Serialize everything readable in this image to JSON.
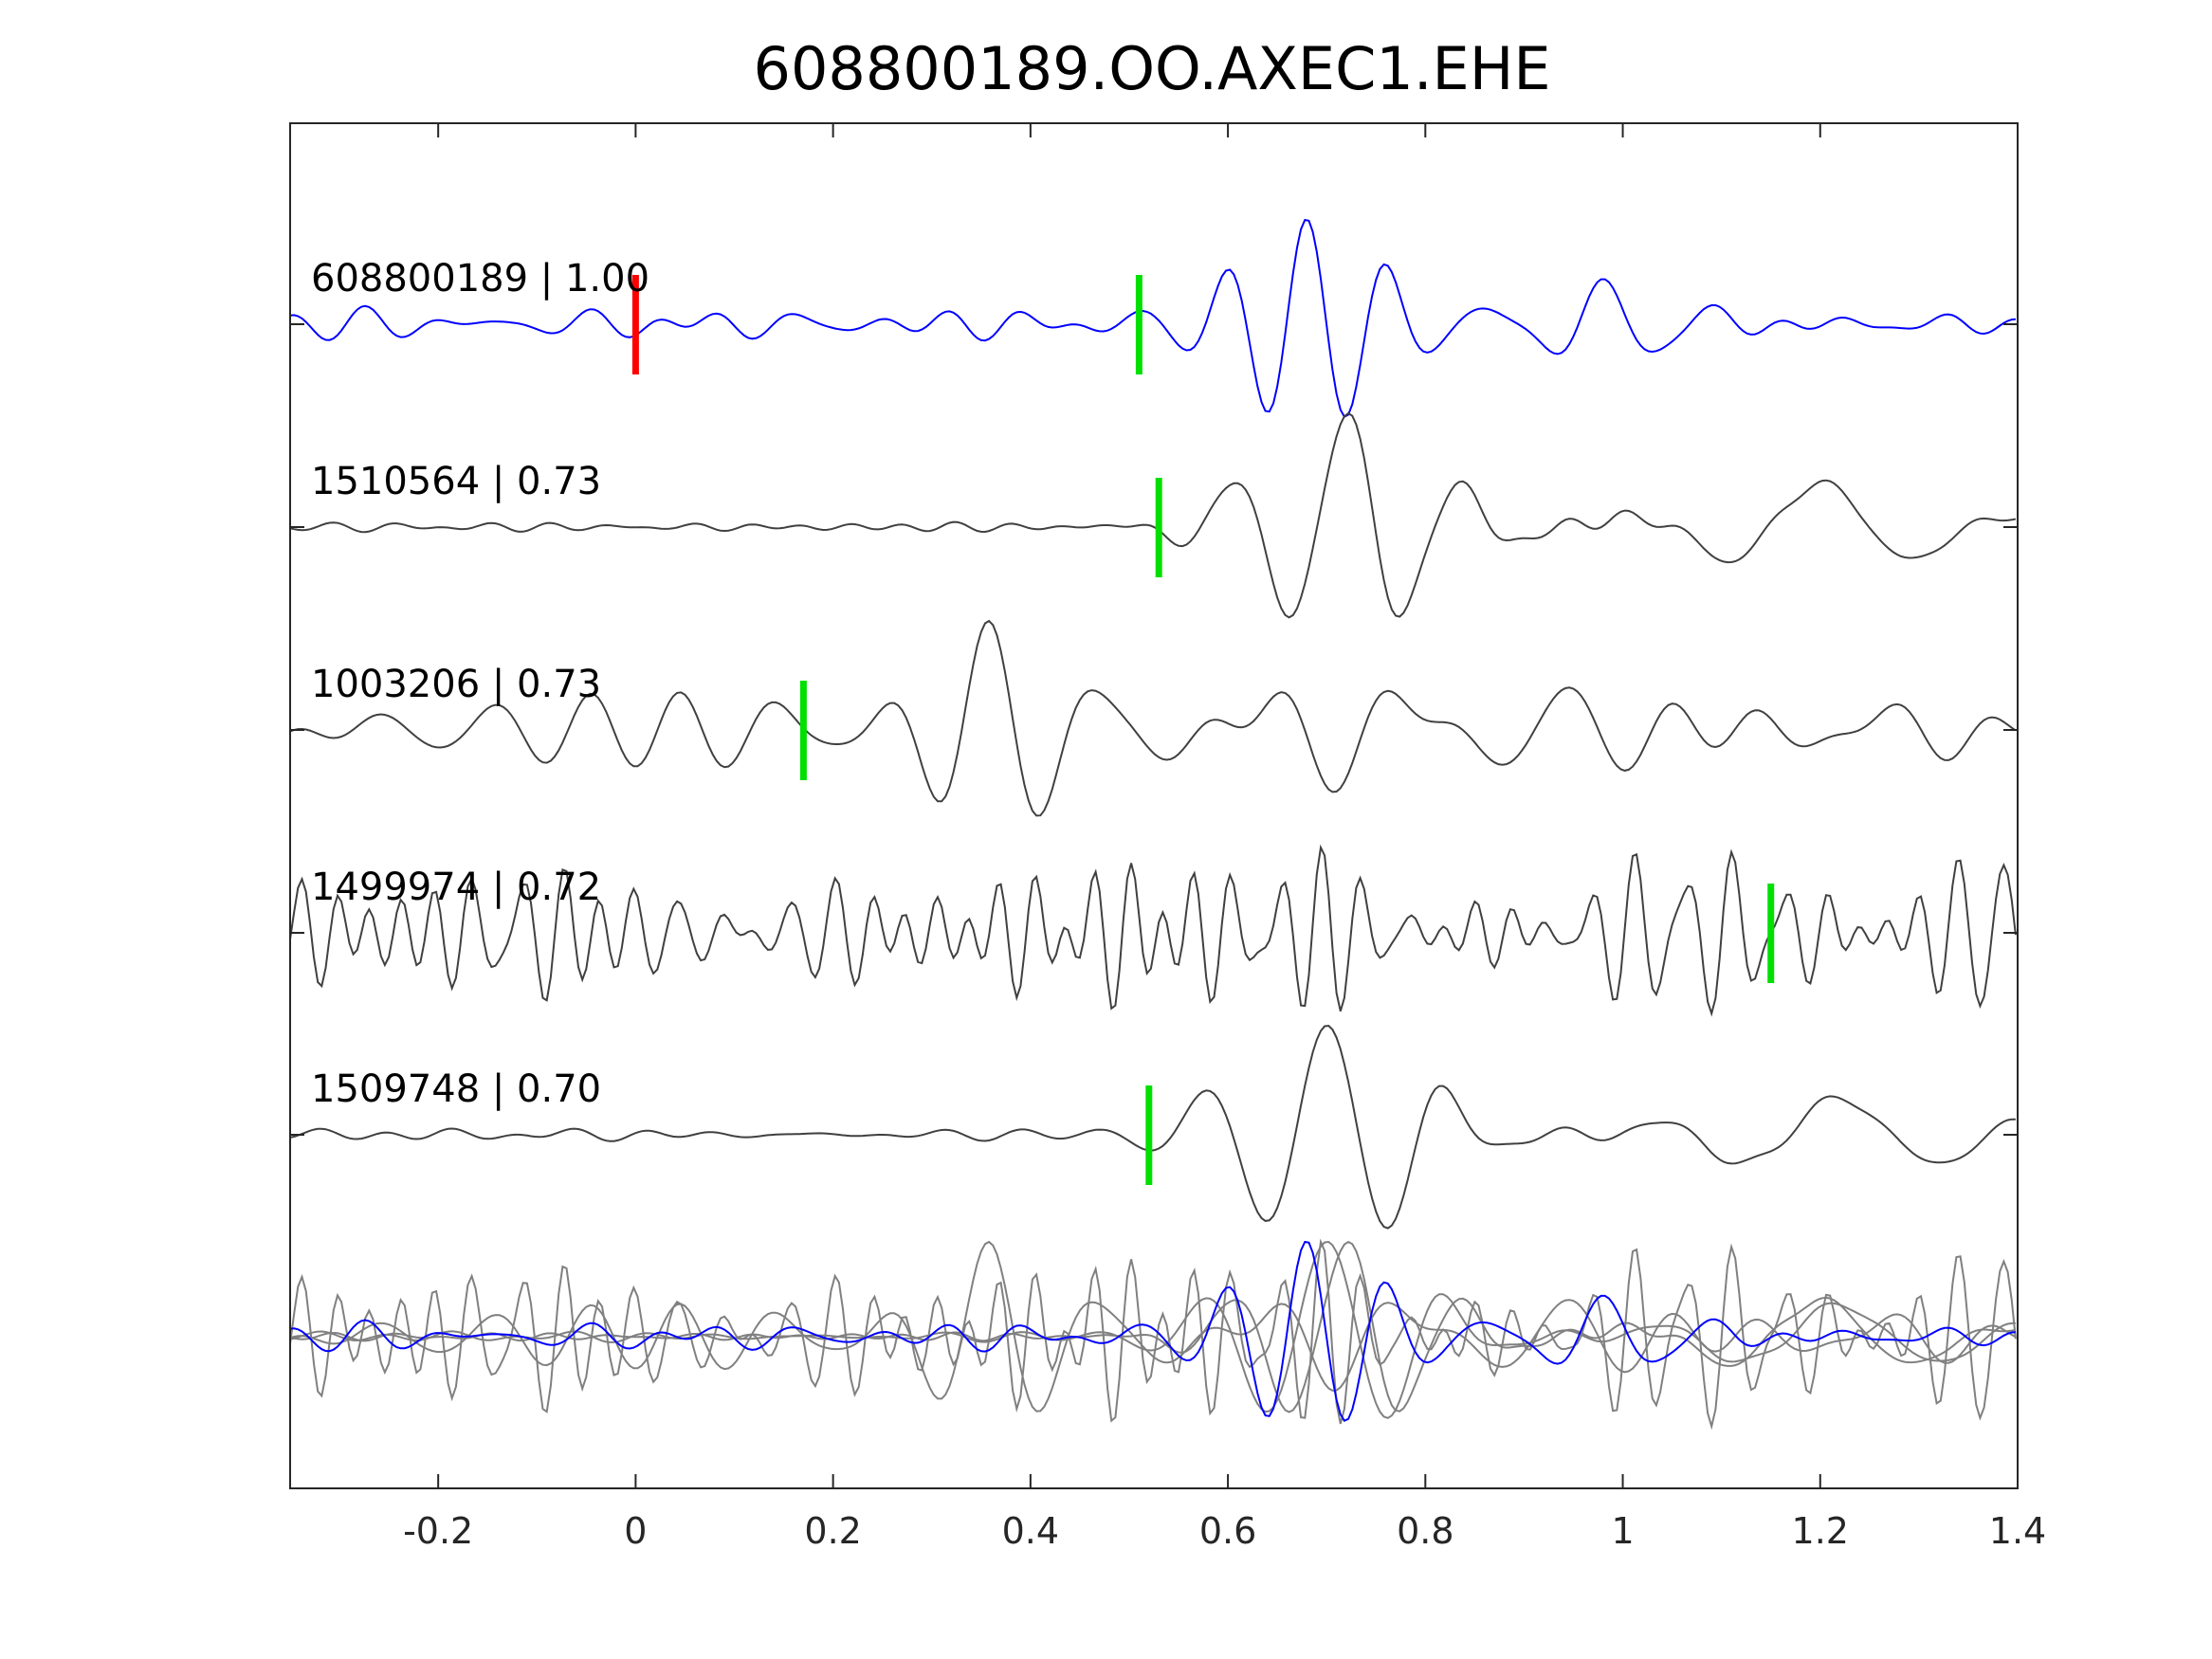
{
  "chart_data": {
    "type": "line",
    "title": "608800189.OO.AXEC1.EHE",
    "xlabel": "",
    "ylabel": "",
    "xlim": [
      -0.35,
      1.4
    ],
    "xticks": [
      -0.2,
      0,
      0.2,
      0.4,
      0.6,
      0.8,
      1,
      1.2,
      1.4
    ],
    "xtick_labels": [
      "-0.2",
      "0",
      "0.2",
      "0.4",
      "0.6",
      "0.8",
      "1",
      "1.2",
      "1.4"
    ],
    "grid": false,
    "colors": {
      "reference": "#0000ff",
      "neighbor": "#404040",
      "stack_neighbor": "#808080",
      "reference_pick": "#ff0000",
      "neighbor_pick": "#00e000",
      "axes": "#262626"
    },
    "traces": [
      {
        "id": "608800189",
        "score": "1.00",
        "label": "608800189 | 1.00",
        "reference": true,
        "picks": [
          {
            "time": 0.0,
            "color": "red"
          },
          {
            "time": 0.51,
            "color": "green"
          }
        ],
        "noise": {
          "amp": 0.16,
          "fmin": 8,
          "fmax": 17
        },
        "signals": [
          {
            "freq": 12,
            "center": 0.68,
            "width": 0.11,
            "amp": 1.0
          },
          {
            "freq": 9,
            "center": 0.98,
            "width": 0.1,
            "amp": 0.35
          }
        ]
      },
      {
        "id": "1510564",
        "score": "0.73",
        "label": "1510564 | 0.73",
        "reference": false,
        "picks": [
          {
            "time": 0.53,
            "color": "green"
          }
        ],
        "noise": {
          "amp": 0.06,
          "fmin": 10,
          "fmax": 20
        },
        "signals": [
          {
            "freq": 8.5,
            "center": 0.72,
            "width": 0.12,
            "amp": 1.0
          },
          {
            "freq": 5,
            "center": 1.2,
            "width": 0.16,
            "amp": 0.4
          }
        ]
      },
      {
        "id": "1003206",
        "score": "0.73",
        "label": "1003206 | 0.73",
        "reference": false,
        "picks": [
          {
            "time": 0.17,
            "color": "green"
          }
        ],
        "noise": {
          "amp": 0.35,
          "fmin": 6,
          "fmax": 13
        },
        "signals": [
          {
            "freq": 9,
            "center": 0.36,
            "width": 0.09,
            "amp": 1.0
          },
          {
            "freq": 7,
            "center": 0.8,
            "width": 0.2,
            "amp": 0.45
          }
        ]
      },
      {
        "id": "1499974",
        "score": "0.72",
        "label": "1499974 | 0.72",
        "reference": false,
        "picks": [
          {
            "time": 1.15,
            "color": "green"
          }
        ],
        "noise": {
          "amp": 0.9,
          "fmin": 18,
          "fmax": 32
        },
        "signals": []
      },
      {
        "id": "1509748",
        "score": "0.70",
        "label": "1509748 | 0.70",
        "reference": false,
        "picks": [
          {
            "time": 0.52,
            "color": "green"
          }
        ],
        "noise": {
          "amp": 0.08,
          "fmin": 8,
          "fmax": 16
        },
        "signals": [
          {
            "freq": 8,
            "center": 0.7,
            "width": 0.12,
            "amp": 1.0
          },
          {
            "freq": 5,
            "center": 1.22,
            "width": 0.16,
            "amp": 0.35
          }
        ]
      }
    ],
    "stack": {
      "label": "",
      "includes": "all traces overlaid"
    }
  }
}
